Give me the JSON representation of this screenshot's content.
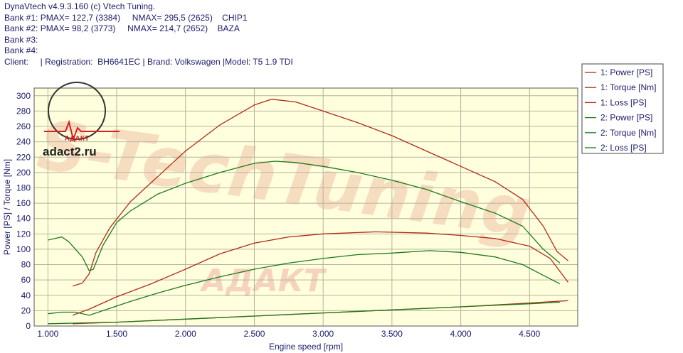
{
  "header": {
    "line1": "DynaVtech v4.9.3.160 (c) Vtech Tuning.",
    "bank1": "Bank #1: PMAX= 122,7 (3384)     NMAX= 295,5 (2625)    CHIP1",
    "bank2": "Bank #2: PMAX= 98,2 (3773)     NMAX= 214,7 (2652)    BAZA",
    "bank3": "Bank #3:",
    "bank4": "Bank #4:",
    "client": "Client:     | Registration:  BH6641EC | Brand: Volkswagen |Model: T5 1.9 TDI"
  },
  "watermark": {
    "site": "adact2.ru",
    "logo_text": "АДАКТ",
    "big_text": "S-TechTuning",
    "bottom_text": "АДАКТ"
  },
  "colors": {
    "bank1": "#b22a1a",
    "bank2": "#1e7a1e",
    "plot_bg": "#ffffdd",
    "axis_text": "#1b1b6b",
    "grid": "#b4b4a0"
  },
  "chart_data": {
    "type": "line",
    "xlabel": "Engine speed [rpm]",
    "ylabel": "Power [PS] / Torque [Nm]",
    "xlim": [
      900,
      4850
    ],
    "ylim": [
      0,
      310
    ],
    "xticks": [
      1000,
      1500,
      2000,
      2500,
      3000,
      3500,
      4000,
      4500
    ],
    "xtick_labels": [
      "1.000",
      "1.500",
      "2.000",
      "2.500",
      "3.000",
      "3.500",
      "4.000",
      "4.500"
    ],
    "yticks": [
      0,
      20,
      40,
      60,
      80,
      100,
      120,
      140,
      160,
      180,
      200,
      220,
      240,
      260,
      280,
      300
    ],
    "ytick_labels": [
      "0",
      "20",
      "40",
      "60",
      "80",
      "100",
      "120",
      "140",
      "160",
      "180",
      "200",
      "220",
      "240",
      "260",
      "280",
      "300"
    ],
    "grid": true,
    "legend_position": "right",
    "series": [
      {
        "name": "1: Power [PS]",
        "bank": 1,
        "x": [
          1180,
          1300,
          1500,
          1750,
          2000,
          2250,
          2500,
          2750,
          3000,
          3384,
          3750,
          4000,
          4250,
          4500,
          4650,
          4780
        ],
        "y": [
          14,
          22,
          38,
          55,
          74,
          94,
          108,
          116,
          120,
          122.7,
          121,
          118,
          114,
          104,
          88,
          57
        ]
      },
      {
        "name": "1: Torque [Nm]",
        "bank": 1,
        "x": [
          1180,
          1250,
          1300,
          1350,
          1450,
          1600,
          1800,
          2000,
          2250,
          2500,
          2625,
          2800,
          3000,
          3250,
          3500,
          3750,
          4000,
          4250,
          4450,
          4600,
          4700,
          4780
        ],
        "y": [
          52,
          56,
          68,
          96,
          128,
          162,
          195,
          228,
          262,
          288,
          295.5,
          292,
          280,
          265,
          248,
          228,
          208,
          188,
          165,
          130,
          97,
          85
        ]
      },
      {
        "name": "1: Loss [PS]",
        "bank": 1,
        "x": [
          1180,
          1500,
          2000,
          2500,
          3000,
          3500,
          4000,
          4500,
          4780
        ],
        "y": [
          3,
          5,
          9,
          13,
          17,
          21,
          25,
          30,
          33
        ]
      },
      {
        "name": "2: Power [PS]",
        "bank": 2,
        "x": [
          1000,
          1100,
          1200,
          1300,
          1400,
          1600,
          1800,
          2000,
          2250,
          2500,
          2750,
          3000,
          3250,
          3500,
          3773,
          4000,
          4250,
          4450,
          4600,
          4720
        ],
        "y": [
          16,
          18,
          18,
          14,
          20,
          32,
          43,
          53,
          64,
          74,
          82,
          88,
          93,
          95,
          98.2,
          96,
          90,
          80,
          66,
          55
        ]
      },
      {
        "name": "2: Torque [Nm]",
        "bank": 2,
        "x": [
          1000,
          1100,
          1150,
          1250,
          1300,
          1330,
          1400,
          1500,
          1600,
          1800,
          2000,
          2250,
          2500,
          2652,
          2800,
          3000,
          3250,
          3500,
          3750,
          4000,
          4250,
          4450,
          4600,
          4720
        ],
        "y": [
          112,
          116,
          110,
          90,
          72,
          74,
          105,
          135,
          150,
          172,
          186,
          200,
          212,
          214.7,
          213,
          208,
          200,
          190,
          178,
          162,
          147,
          130,
          100,
          82
        ]
      },
      {
        "name": "2: Loss [PS]",
        "bank": 2,
        "x": [
          1000,
          1500,
          2000,
          2500,
          3000,
          3500,
          4000,
          4500,
          4720
        ],
        "y": [
          3,
          5,
          9,
          13,
          17,
          21,
          25,
          29,
          31
        ]
      }
    ]
  }
}
